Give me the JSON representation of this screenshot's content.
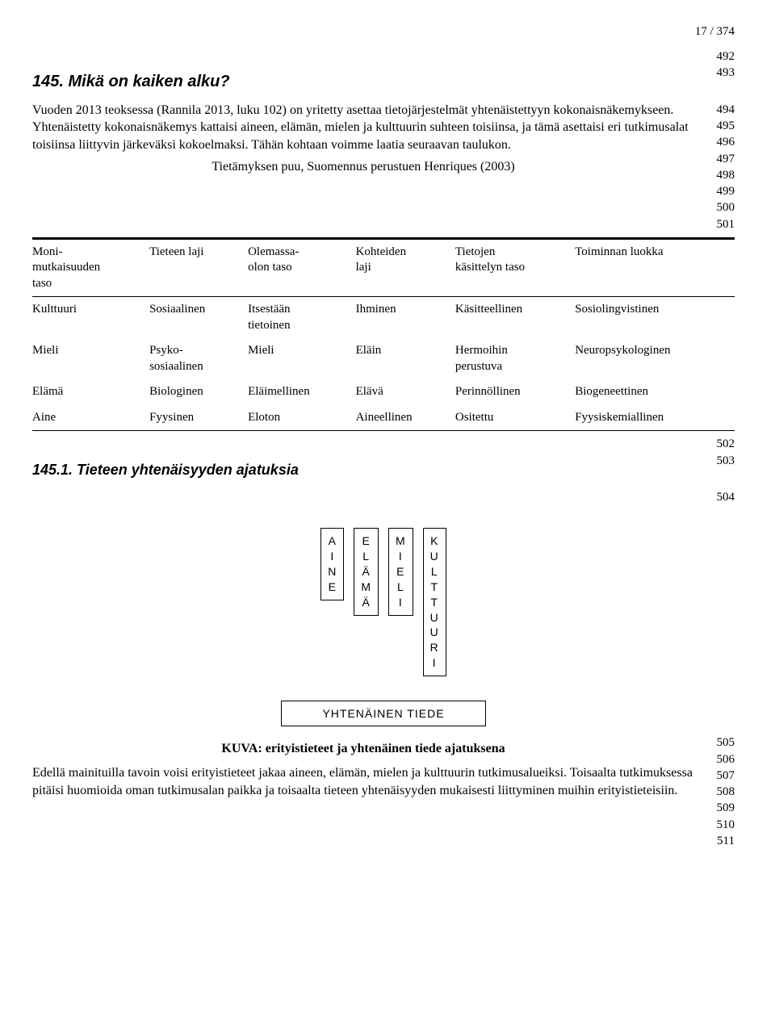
{
  "page_indicator": "17 / 374",
  "line_numbers": {
    "pre_heading": "492",
    "heading1_ln": "493",
    "paragraph1_lns": [
      "494",
      "495",
      "496",
      "497",
      "498",
      "499",
      "500",
      "501"
    ],
    "after_table_ln": "502",
    "heading2_ln": "503",
    "after_heading2_ln": "504",
    "bottom_lns": [
      "505",
      "506",
      "507",
      "508",
      "509",
      "510",
      "511"
    ]
  },
  "heading1": "145. Mikä on kaiken alku?",
  "paragraph1": "Vuoden 2013 teoksessa (Rannila 2013, luku 102) on yritetty asettaa tietojärjestelmät yhtenäistettyyn kokonaisnäkemykseen. Yhtenäistetty kokonaisnäkemys kattaisi aineen, elämän, mielen ja kulttuurin suhteen toisiinsa, ja tämä asettaisi eri tutkimusalat toisiinsa liittyvin järkeväksi kokoelmaksi. Tähän kohtaan voimme laatia seuraavan taulukon.",
  "table_caption": "Tietämyksen puu, Suomennus perustuen Henriques (2003)",
  "table": {
    "columns": [
      "Moni-\nmutkaisuuden\ntaso",
      "Tieteen laji",
      "Olemassa-\nolon taso",
      "Kohteiden\nlaji",
      "Tietojen\nkäsittelyn taso",
      "Toiminnan luokka"
    ],
    "rows": [
      [
        "Kulttuuri",
        "Sosiaalinen",
        "Itsestään\ntietoinen",
        "Ihminen",
        "Käsitteellinen",
        "Sosiolingvistinen"
      ],
      [
        "Mieli",
        "Psyko-\nsosiaalinen",
        "Mieli",
        "Eläin",
        "Hermoihin\nperustuva",
        "Neuropsykologinen"
      ],
      [
        "Elämä",
        "Biologinen",
        "Eläimellinen",
        "Elävä",
        "Perinnöllinen",
        "Biogeneettinen"
      ],
      [
        "Aine",
        "Fyysinen",
        "Eloton",
        "Aineellinen",
        "Ositettu",
        "Fyysiskemiallinen"
      ]
    ]
  },
  "heading2": "145.1. Tieteen yhtenäisyyden ajatuksia",
  "diagram": {
    "boxes": [
      "AINE",
      "ELÄMÄ",
      "MIELI",
      "KULTTUURI"
    ],
    "bottom_box": "YHTENÄINEN TIEDE"
  },
  "figure_caption": "KUVA: erityistieteet ja yhtenäinen tiede ajatuksena",
  "paragraph2": "Edellä mainituilla tavoin voisi erityistieteet jakaa aineen, elämän, mielen ja kulttuurin tutkimusalueiksi. Toisaalta tutkimuksessa pitäisi huomioida oman tutkimusalan paikka ja toisaalta tieteen yhtenäisyyden mukaisesti liittyminen muihin erityistieteisiin."
}
